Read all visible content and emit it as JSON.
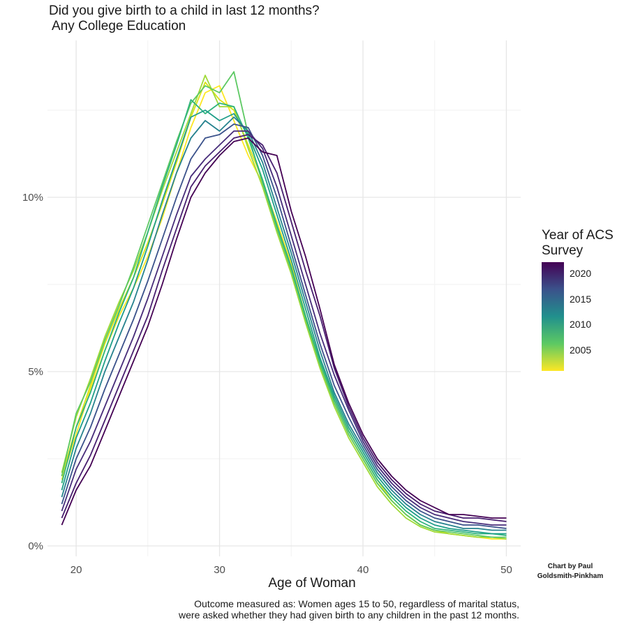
{
  "chart_data": {
    "type": "line",
    "title": "Did you give birth to a child in last 12 months?",
    "subtitle": "Any College Education",
    "xlabel": "Age of Woman",
    "ylabel": "",
    "x_ticks": [
      "20",
      "30",
      "40",
      "50"
    ],
    "y_ticks": [
      "0%",
      "5%",
      "10%"
    ],
    "xlim": [
      18,
      51
    ],
    "ylim": [
      -0.3,
      14.5
    ],
    "grid": true,
    "legend": {
      "title_line1": "Year of ACS",
      "title_line2": "Survey",
      "placement": "right",
      "labels": [
        "2020",
        "2015",
        "2010",
        "2005"
      ],
      "colors": [
        "#440154",
        "#3b528b",
        "#21908d",
        "#5dc963",
        "#fde725"
      ]
    },
    "x": [
      19,
      20,
      21,
      22,
      23,
      24,
      25,
      26,
      27,
      28,
      29,
      30,
      31,
      32,
      33,
      34,
      35,
      36,
      37,
      38,
      39,
      40,
      41,
      42,
      43,
      44,
      45,
      46,
      47,
      48,
      49,
      50
    ],
    "series": [
      {
        "year": 2001,
        "color": "#fde725",
        "values": [
          1.9,
          3.2,
          4.5,
          5.6,
          6.6,
          7.4,
          8.3,
          9.4,
          10.7,
          12.0,
          13.0,
          13.2,
          12.2,
          11.2,
          10.4,
          9.3,
          8.1,
          6.6,
          5.3,
          4.2,
          3.3,
          2.6,
          1.9,
          1.3,
          0.9,
          0.6,
          0.45,
          0.35,
          0.3,
          0.25,
          0.2,
          0.2
        ]
      },
      {
        "year": 2003,
        "color": "#d8e219",
        "values": [
          2.0,
          3.4,
          4.6,
          5.8,
          6.8,
          7.7,
          8.7,
          9.8,
          11.0,
          12.3,
          13.3,
          12.8,
          12.5,
          11.5,
          10.5,
          9.2,
          7.9,
          6.5,
          5.2,
          4.1,
          3.2,
          2.5,
          1.8,
          1.3,
          0.9,
          0.6,
          0.45,
          0.35,
          0.3,
          0.25,
          0.25,
          0.2
        ]
      },
      {
        "year": 2005,
        "color": "#a0da39",
        "values": [
          2.1,
          3.7,
          4.8,
          6.0,
          7.0,
          7.9,
          9.0,
          10.2,
          11.3,
          12.4,
          13.5,
          12.6,
          12.6,
          11.4,
          10.3,
          9.0,
          7.8,
          6.4,
          5.1,
          4.0,
          3.1,
          2.4,
          1.7,
          1.2,
          0.8,
          0.55,
          0.4,
          0.35,
          0.3,
          0.25,
          0.25,
          0.2
        ]
      },
      {
        "year": 2007,
        "color": "#5dc963",
        "values": [
          2.0,
          3.8,
          4.7,
          5.9,
          6.9,
          8.0,
          9.2,
          10.4,
          11.6,
          12.7,
          13.2,
          13.0,
          13.6,
          11.8,
          10.4,
          9.1,
          7.9,
          6.5,
          5.2,
          4.1,
          3.2,
          2.5,
          1.8,
          1.3,
          0.9,
          0.6,
          0.45,
          0.4,
          0.35,
          0.3,
          0.25,
          0.25
        ]
      },
      {
        "year": 2009,
        "color": "#2fb47c",
        "values": [
          1.8,
          3.4,
          4.4,
          5.6,
          6.7,
          7.7,
          9.0,
          10.3,
          11.5,
          12.8,
          12.4,
          12.7,
          12.6,
          11.7,
          10.5,
          9.2,
          8.0,
          6.6,
          5.3,
          4.2,
          3.3,
          2.6,
          1.9,
          1.4,
          1.0,
          0.7,
          0.5,
          0.45,
          0.4,
          0.35,
          0.35,
          0.3
        ]
      },
      {
        "year": 2011,
        "color": "#1f9e89",
        "values": [
          1.6,
          3.1,
          4.1,
          5.3,
          6.4,
          7.4,
          8.6,
          9.9,
          11.1,
          12.3,
          12.5,
          12.2,
          12.4,
          11.8,
          10.8,
          9.5,
          8.2,
          6.8,
          5.4,
          4.3,
          3.4,
          2.7,
          2.0,
          1.5,
          1.1,
          0.8,
          0.6,
          0.5,
          0.45,
          0.4,
          0.35,
          0.35
        ]
      },
      {
        "year": 2013,
        "color": "#26828e",
        "values": [
          1.4,
          2.8,
          3.8,
          5.0,
          6.0,
          7.0,
          8.2,
          9.5,
          10.7,
          11.7,
          12.2,
          11.9,
          12.3,
          11.9,
          11.0,
          9.7,
          8.4,
          7.0,
          5.6,
          4.4,
          3.5,
          2.8,
          2.1,
          1.6,
          1.2,
          0.9,
          0.7,
          0.6,
          0.5,
          0.5,
          0.45,
          0.45
        ]
      },
      {
        "year": 2015,
        "color": "#3b528b",
        "values": [
          1.2,
          2.5,
          3.4,
          4.5,
          5.5,
          6.5,
          7.6,
          8.8,
          10.0,
          11.1,
          11.7,
          11.8,
          12.1,
          12.0,
          11.2,
          10.0,
          8.6,
          7.2,
          5.8,
          4.6,
          3.7,
          2.9,
          2.2,
          1.7,
          1.3,
          1.0,
          0.8,
          0.7,
          0.6,
          0.6,
          0.55,
          0.5
        ]
      },
      {
        "year": 2017,
        "color": "#472c7a",
        "values": [
          1.0,
          2.2,
          3.0,
          4.0,
          5.0,
          6.0,
          7.1,
          8.3,
          9.5,
          10.6,
          11.1,
          11.5,
          11.9,
          11.9,
          11.4,
          10.3,
          8.9,
          7.5,
          6.1,
          4.9,
          3.9,
          3.0,
          2.3,
          1.8,
          1.4,
          1.1,
          0.9,
          0.8,
          0.7,
          0.65,
          0.6,
          0.6
        ]
      },
      {
        "year": 2019,
        "color": "#481f70",
        "values": [
          0.8,
          1.8,
          2.6,
          3.6,
          4.6,
          5.6,
          6.6,
          7.9,
          9.1,
          10.3,
          10.9,
          11.3,
          11.7,
          11.8,
          11.5,
          10.7,
          9.3,
          7.9,
          6.6,
          5.1,
          4.0,
          3.1,
          2.4,
          1.9,
          1.5,
          1.2,
          1.0,
          0.9,
          0.8,
          0.8,
          0.75,
          0.7
        ]
      },
      {
        "year": 2021,
        "color": "#440154",
        "values": [
          0.6,
          1.6,
          2.3,
          3.3,
          4.3,
          5.3,
          6.3,
          7.5,
          8.8,
          10.0,
          10.7,
          11.2,
          11.6,
          11.7,
          11.3,
          11.2,
          9.6,
          8.3,
          6.8,
          5.2,
          4.1,
          3.2,
          2.5,
          2.0,
          1.6,
          1.3,
          1.1,
          0.9,
          0.9,
          0.85,
          0.8,
          0.8
        ]
      }
    ]
  },
  "caption_line1": "Outcome measured as: Women ages 15 to 50, regardless of marital status,",
  "caption_line2": "were asked whether they had given birth to any children in the past 12 months.",
  "credit_line1": "Chart by Paul",
  "credit_line2": "Goldsmith-Pinkham"
}
